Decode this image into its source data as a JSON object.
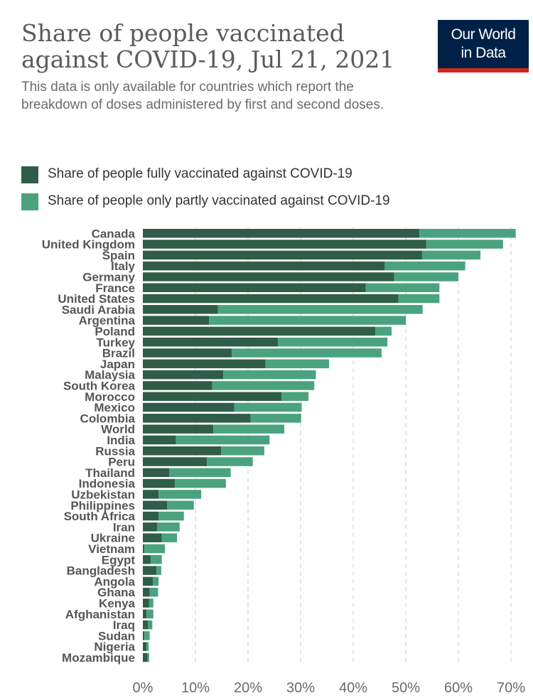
{
  "header": {
    "title": "Share of people vaccinated against COVID-19, Jul 21, 2021",
    "subtitle": "This data is only available for countries which report the breakdown of doses administered by first and second doses.",
    "logo_line1": "Our World",
    "logo_line2": "in Data"
  },
  "legend": {
    "items": [
      {
        "label": "Share of people fully vaccinated against COVID-19",
        "color": "#2f5d48"
      },
      {
        "label": "Share of people only partly vaccinated against COVID-19",
        "color": "#4aa37e"
      }
    ]
  },
  "colors": {
    "fully": "#2f5d48",
    "partly": "#4aa37e",
    "grid": "#cccccc",
    "logo_bg": "#002147",
    "logo_bar": "#ce261e"
  },
  "chart_data": {
    "type": "bar",
    "orientation": "horizontal",
    "stacked": true,
    "categories": [
      "Canada",
      "United Kingdom",
      "Spain",
      "Italy",
      "Germany",
      "France",
      "United States",
      "Saudi Arabia",
      "Argentina",
      "Poland",
      "Turkey",
      "Brazil",
      "Japan",
      "Malaysia",
      "South Korea",
      "Morocco",
      "Mexico",
      "Colombia",
      "World",
      "India",
      "Russia",
      "Peru",
      "Thailand",
      "Indonesia",
      "Uzbekistan",
      "Philippines",
      "South Africa",
      "Iran",
      "Ukraine",
      "Vietnam",
      "Egypt",
      "Bangladesh",
      "Angola",
      "Ghana",
      "Kenya",
      "Afghanistan",
      "Iraq",
      "Sudan",
      "Nigeria",
      "Mozambique"
    ],
    "series": [
      {
        "name": "Share of people fully vaccinated against COVID-19",
        "values": [
          52.6,
          53.9,
          53.1,
          46.0,
          47.8,
          42.4,
          48.6,
          14.3,
          12.6,
          44.2,
          25.7,
          16.9,
          23.3,
          15.3,
          13.2,
          26.4,
          17.4,
          20.5,
          13.4,
          6.3,
          14.9,
          12.2,
          5.0,
          6.1,
          3.0,
          4.6,
          3.0,
          2.7,
          3.6,
          0.3,
          1.5,
          2.6,
          1.9,
          1.3,
          1.2,
          0.7,
          1.0,
          0.3,
          0.7,
          0.9
        ],
        "color": "#2f5d48"
      },
      {
        "name": "Share of people only partly vaccinated against COVID-19",
        "values": [
          18.3,
          14.6,
          11.1,
          15.3,
          12.2,
          14.0,
          7.8,
          38.9,
          37.4,
          3.1,
          20.8,
          28.5,
          12.1,
          17.6,
          19.4,
          5.1,
          12.8,
          9.6,
          13.5,
          17.8,
          8.2,
          8.7,
          11.7,
          9.7,
          8.1,
          5.1,
          4.8,
          4.3,
          2.9,
          3.9,
          2.1,
          0.9,
          1.1,
          1.6,
          0.8,
          1.3,
          0.8,
          1.0,
          0.4,
          0.3
        ],
        "color": "#4aa37e"
      }
    ],
    "xlim": [
      0,
      70
    ],
    "xticks": [
      0,
      10,
      20,
      30,
      40,
      50,
      60,
      70
    ],
    "xtick_labels": [
      "0%",
      "10%",
      "20%",
      "30%",
      "40%",
      "50%",
      "60%",
      "70%"
    ],
    "grid": "vertical dashed",
    "legend_position": "top-left"
  }
}
